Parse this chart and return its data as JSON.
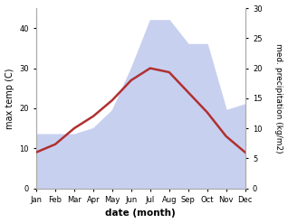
{
  "months": [
    "Jan",
    "Feb",
    "Mar",
    "Apr",
    "May",
    "Jun",
    "Jul",
    "Aug",
    "Sep",
    "Oct",
    "Nov",
    "Dec"
  ],
  "temperature": [
    9,
    11,
    15,
    18,
    22,
    27,
    30,
    29,
    24,
    19,
    13,
    9
  ],
  "precipitation": [
    9,
    9,
    9,
    10,
    13,
    20,
    28,
    28,
    24,
    24,
    13,
    14
  ],
  "temp_color": "#b03030",
  "precip_fill_color": "#c8d0f0",
  "temp_ylim": [
    0,
    45
  ],
  "precip_ylim": [
    0,
    30
  ],
  "temp_yticks": [
    0,
    10,
    20,
    30,
    40
  ],
  "precip_yticks": [
    0,
    5,
    10,
    15,
    20,
    25,
    30
  ],
  "xlabel": "date (month)",
  "ylabel_left": "max temp (C)",
  "ylabel_right": "med. precipitation (kg/m2)",
  "spine_color": "#aaaaaa",
  "tick_color": "#555555"
}
